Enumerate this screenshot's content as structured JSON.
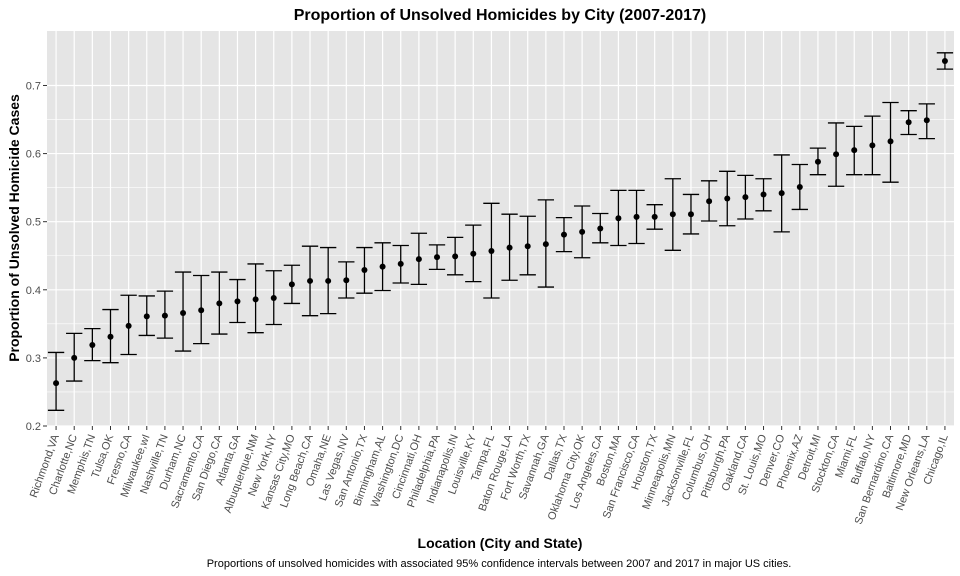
{
  "chart_data": {
    "type": "scatter",
    "title": "Proportion of Unsolved Homicides by City (2007-2017)",
    "xlabel": "Location (City and State)",
    "ylabel": "Proportion of Unsolved Homicide Cases",
    "caption": "Proportions of unsolved homicides with associated 95% confidence intervals between 2007 and 2017 in major US cities.",
    "ylim": [
      0.2,
      0.78
    ],
    "yticks": [
      0.2,
      0.3,
      0.4,
      0.5,
      0.6,
      0.7
    ],
    "ytick_labels": [
      "0.2",
      "0.3",
      "0.4",
      "0.5",
      "0.6",
      "0.7"
    ],
    "grid": true,
    "colors": {
      "panel": "#e5e5e5",
      "grid": "#ffffff",
      "point": "#000000"
    },
    "categories": [
      "Richmond,VA",
      "Charlotte,NC",
      "Memphis,TN",
      "Tulsa,OK",
      "Fresno,CA",
      "Milwaukee,wI",
      "Nashville,TN",
      "Durham,NC",
      "Sacramento,CA",
      "San Diego,CA",
      "Atlanta,GA",
      "Albuquerque,NM",
      "New York,NY",
      "Kansas City,MO",
      "Long Beach,CA",
      "Omaha,NE",
      "Las Vegas,NV",
      "San Antonio,TX",
      "Birmingham,AL",
      "Washington,DC",
      "Cincinnati,OH",
      "Philadelphia,PA",
      "Indianapolis,IN",
      "Louisville,KY",
      "Tampa,FL",
      "Baton Rouge,LA",
      "Fort Worth,TX",
      "Savannah,GA",
      "Dallas,TX",
      "Oklahoma City,OK",
      "Los Angeles,CA",
      "Boston,MA",
      "San Francisco,CA",
      "Houston,TX",
      "Minneapolis,MN",
      "Jacksonville,FL",
      "Columbus,OH",
      "Pittsburgh,PA",
      "Oakland,CA",
      "St. Louis,MO",
      "Denver,CO",
      "Phoenix,AZ",
      "Detroit,MI",
      "Stockton,CA",
      "Miami,FL",
      "Buffalo,NY",
      "San Bernardino,CA",
      "Baltimore,MD",
      "New Orleans,LA",
      "Chicago,IL"
    ],
    "estimate": [
      0.263,
      0.3,
      0.319,
      0.331,
      0.347,
      0.361,
      0.362,
      0.366,
      0.37,
      0.38,
      0.383,
      0.386,
      0.388,
      0.408,
      0.413,
      0.413,
      0.414,
      0.429,
      0.434,
      0.438,
      0.445,
      0.448,
      0.449,
      0.453,
      0.457,
      0.462,
      0.464,
      0.467,
      0.481,
      0.485,
      0.49,
      0.505,
      0.507,
      0.507,
      0.511,
      0.511,
      0.53,
      0.534,
      0.536,
      0.54,
      0.542,
      0.551,
      0.588,
      0.599,
      0.605,
      0.612,
      0.618,
      0.646,
      0.649,
      0.736
    ],
    "lower": [
      0.223,
      0.266,
      0.296,
      0.293,
      0.305,
      0.333,
      0.329,
      0.31,
      0.321,
      0.335,
      0.352,
      0.337,
      0.349,
      0.38,
      0.362,
      0.365,
      0.388,
      0.395,
      0.399,
      0.41,
      0.408,
      0.43,
      0.422,
      0.412,
      0.388,
      0.414,
      0.422,
      0.404,
      0.456,
      0.447,
      0.469,
      0.465,
      0.468,
      0.489,
      0.458,
      0.482,
      0.501,
      0.494,
      0.504,
      0.516,
      0.485,
      0.518,
      0.569,
      0.552,
      0.569,
      0.569,
      0.558,
      0.628,
      0.622,
      0.724
    ],
    "upper": [
      0.308,
      0.336,
      0.343,
      0.371,
      0.392,
      0.391,
      0.398,
      0.426,
      0.421,
      0.426,
      0.415,
      0.438,
      0.428,
      0.436,
      0.464,
      0.462,
      0.441,
      0.462,
      0.469,
      0.465,
      0.483,
      0.466,
      0.477,
      0.495,
      0.527,
      0.511,
      0.508,
      0.532,
      0.506,
      0.523,
      0.512,
      0.546,
      0.546,
      0.525,
      0.563,
      0.54,
      0.56,
      0.574,
      0.568,
      0.563,
      0.598,
      0.584,
      0.608,
      0.645,
      0.64,
      0.655,
      0.675,
      0.663,
      0.673,
      0.748
    ]
  }
}
